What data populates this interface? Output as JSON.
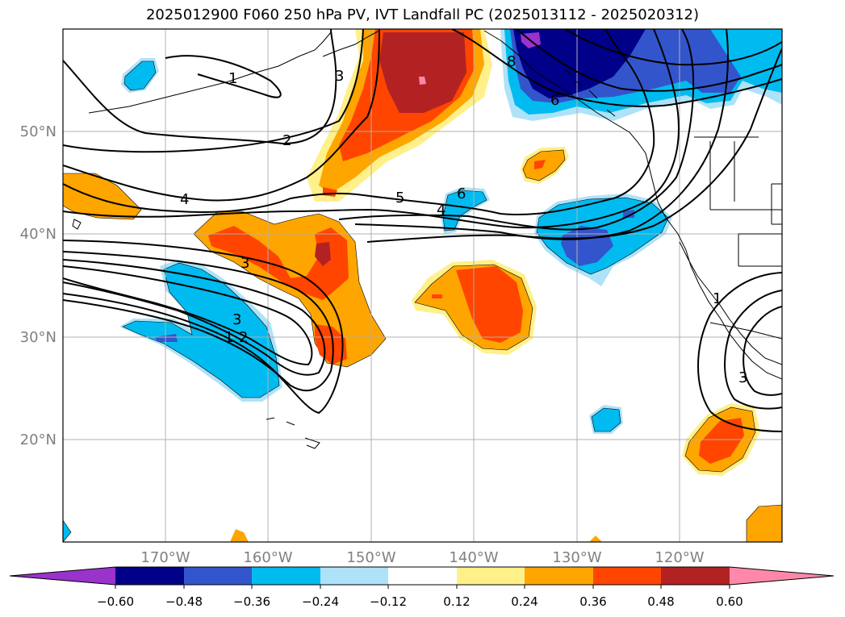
{
  "title": "2025012900 F060 250 hPa PV, IVT Landfall PC (2025013112 - 2025020312)",
  "lat_labels": [
    "50°N",
    "40°N",
    "30°N",
    "20°N"
  ],
  "lon_labels": [
    "170°W",
    "160°W",
    "150°W",
    "140°W",
    "130°W",
    "120°W"
  ],
  "contour_labels": [
    "1",
    "2",
    "3",
    "4",
    "5",
    "6",
    "4",
    "3",
    "1",
    "2",
    "3",
    "3",
    "1",
    "8",
    "6"
  ],
  "colorbar": {
    "tick_labels": [
      "−0.60",
      "−0.48",
      "−0.36",
      "−0.24",
      "−0.12",
      "0.12",
      "0.24",
      "0.36",
      "0.48",
      "0.60"
    ],
    "colors": [
      "#9933cc",
      "#000088",
      "#3355cc",
      "#00bbf0",
      "#aee2f8",
      "#ffffff",
      "#fff08a",
      "#ffa500",
      "#ff4500",
      "#b22222",
      "#ff88aa"
    ]
  },
  "colors": {
    "frame": "#000000",
    "grid": "#b0b0b0",
    "axis_label": "#808080"
  }
}
